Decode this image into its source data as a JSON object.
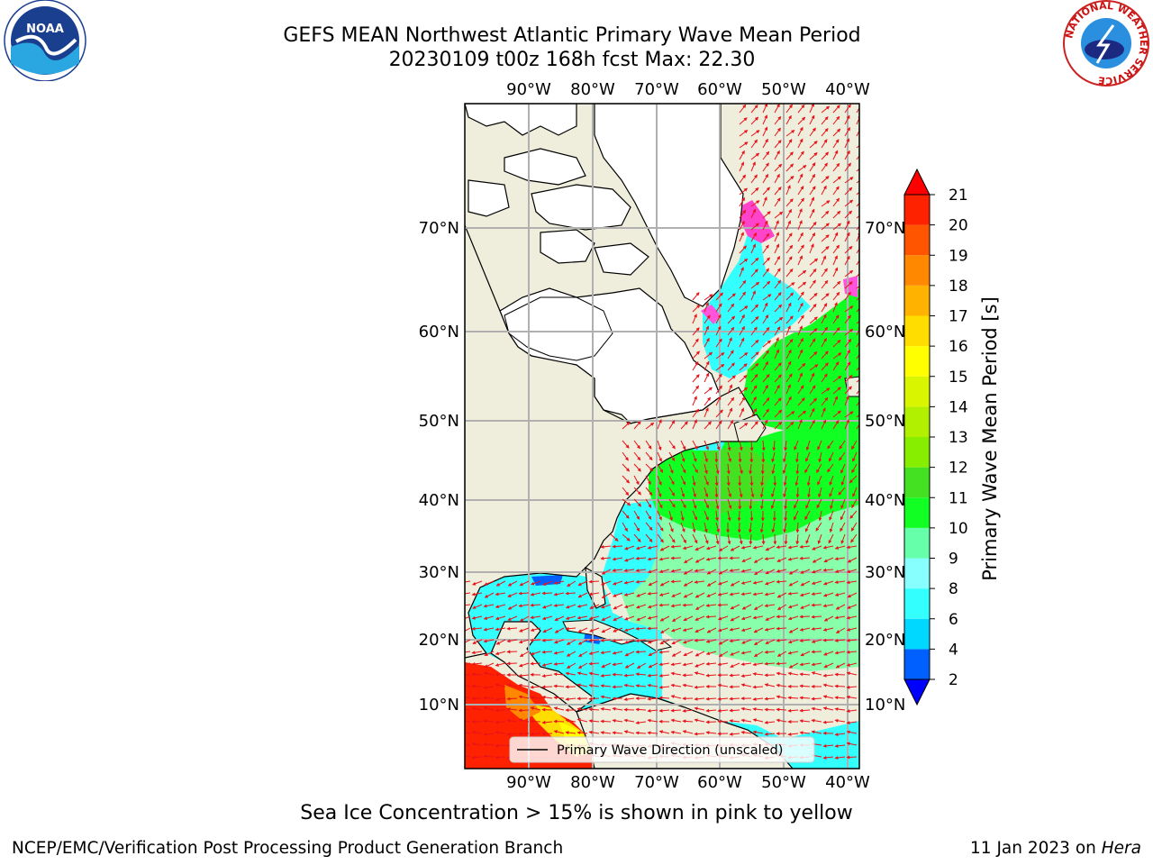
{
  "header": {
    "title_line1": "GEFS MEAN Northwest Atlantic Primary Wave Mean Period",
    "title_line2": "20230109 t00z 168h fcst   Max: 22.30"
  },
  "map": {
    "lon_ticks": [
      "90°W",
      "80°W",
      "70°W",
      "60°W",
      "50°W",
      "40°W"
    ],
    "lat_ticks": [
      "70°N",
      "60°N",
      "50°N",
      "40°N",
      "30°N",
      "20°N",
      "10°N"
    ],
    "legend_label": "Primary Wave Direction (unscaled)",
    "colors": {
      "land": "#efeddb",
      "ice_free_land": "#ffffff",
      "arrow": "#e8131a",
      "grid": "#b0b0b0"
    }
  },
  "colorbar": {
    "label": "Primary Wave Mean Period [s]",
    "ticks": [
      "2",
      "4",
      "6",
      "8",
      "9",
      "10",
      "11",
      "12",
      "13",
      "14",
      "15",
      "16",
      "17",
      "18",
      "19",
      "20",
      "21"
    ],
    "colors": [
      "#0000ff",
      "#0060ff",
      "#00d8ff",
      "#33ffff",
      "#88ffff",
      "#66ffaa",
      "#11ff22",
      "#44e022",
      "#88ee00",
      "#b0f000",
      "#d9f500",
      "#ffff00",
      "#ffdd00",
      "#ffb300",
      "#ff8800",
      "#ff5500",
      "#ff2200",
      "#ff0000"
    ]
  },
  "footer": {
    "note": "Sea Ice Concentration > 15% is shown in pink to yellow",
    "credit": "NCEP/EMC/Verification Post Processing Product Generation Branch",
    "date": "11 Jan 2023 on",
    "machine": "Hera"
  },
  "logos": {
    "left": "NOAA",
    "right_ring": "NATIONAL WEATHER SERVICE"
  }
}
